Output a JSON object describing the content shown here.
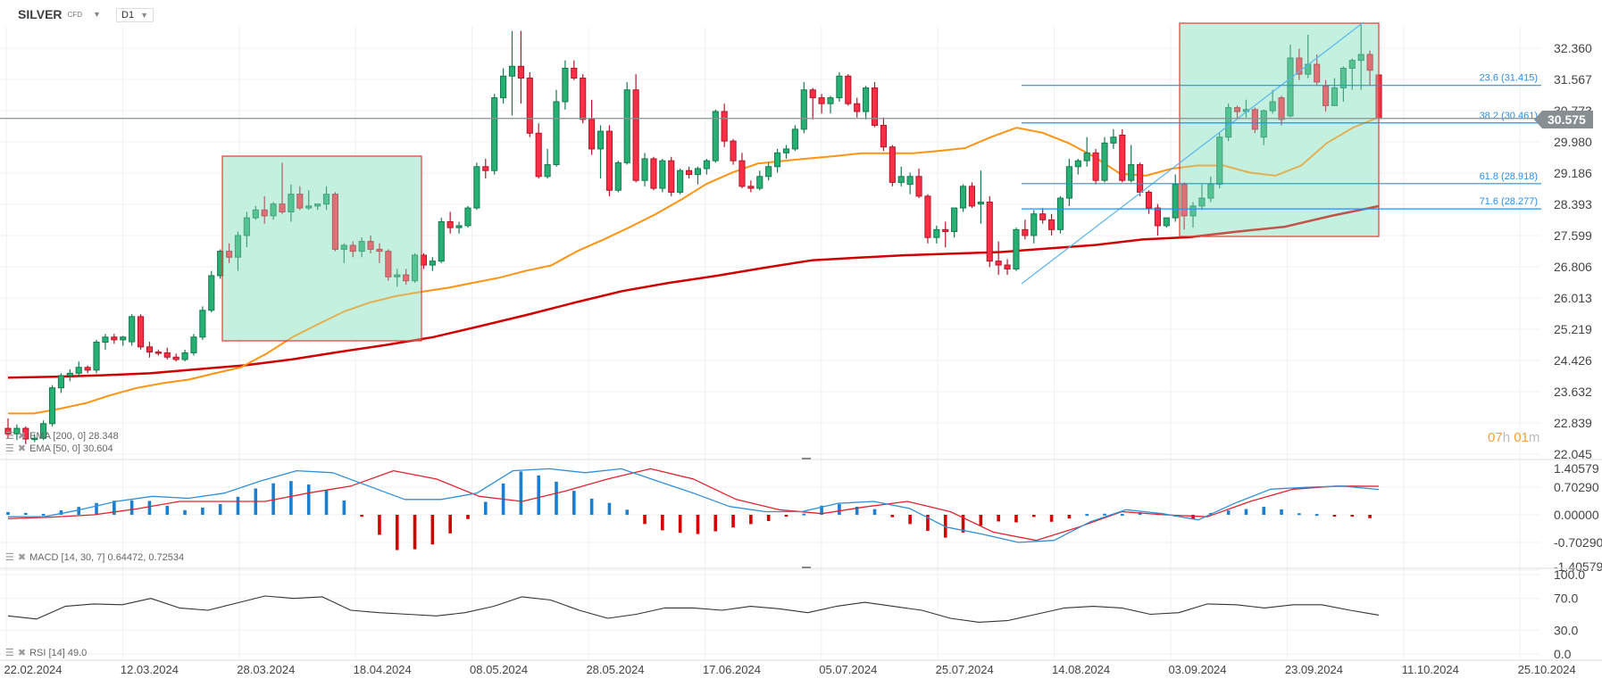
{
  "header": {
    "symbol": "SILVER",
    "instrument_type": "CFD",
    "timeframe": "D1"
  },
  "current_price": "30.575",
  "countdown": {
    "hours": "07",
    "h_unit": "h",
    "minutes": "01",
    "m_unit": "m"
  },
  "legends": {
    "ema200": "EMA [200, 0] 28.348",
    "ema50": "EMA [50, 0] 30.604",
    "macd": "MACD [14, 30, 7] 0.64472, 0.72534",
    "rsi": "RSI [14] 49.0"
  },
  "colors": {
    "up": "#27b074",
    "down": "#fb2e45",
    "ema50": "#ff9312",
    "ema200": "#d10000",
    "macd": "#2f8fd8",
    "signal": "#e0242f",
    "fib": "#1e90ff",
    "rect_fill": "#6fd8b0",
    "rect_border": "#e53935"
  },
  "fibonacci": [
    {
      "label": "23.6 (31.415)",
      "price": 31.415
    },
    {
      "label": "38.2 (30.461)",
      "price": 30.461
    },
    {
      "label": "61.8 (28.918)",
      "price": 28.918
    },
    {
      "label": "71.6 (28.277)",
      "price": 28.277
    }
  ],
  "chart_data": {
    "type": "candlestick",
    "title": "SILVER",
    "timeframe": "D1",
    "price_axis": [
      "32.360",
      "31.567",
      "30.773",
      "29.980",
      "29.186",
      "28.393",
      "27.599",
      "26.806",
      "26.013",
      "25.219",
      "24.426",
      "23.632",
      "22.839",
      "22.045"
    ],
    "price_range": [
      22.045,
      32.36
    ],
    "date_axis": [
      "22.02.2024",
      "12.03.2024",
      "28.03.2024",
      "18.04.2024",
      "08.05.2024",
      "28.05.2024",
      "17.06.2024",
      "05.07.2024",
      "25.07.2024",
      "14.08.2024",
      "03.09.2024",
      "23.09.2024",
      "11.10.2024",
      "25.10.2024"
    ],
    "candles_ohlc": [
      [
        22.7,
        22.95,
        22.45,
        22.56
      ],
      [
        22.56,
        22.8,
        22.4,
        22.7
      ],
      [
        22.7,
        22.75,
        22.3,
        22.43
      ],
      [
        22.43,
        22.55,
        22.35,
        22.45
      ],
      [
        22.45,
        22.9,
        22.4,
        22.82
      ],
      [
        22.82,
        23.8,
        22.75,
        23.73
      ],
      [
        23.73,
        24.1,
        23.6,
        24.04
      ],
      [
        24.04,
        24.2,
        23.9,
        24.1
      ],
      [
        24.1,
        24.4,
        24.0,
        24.25
      ],
      [
        24.25,
        24.3,
        24.1,
        24.18
      ],
      [
        24.18,
        24.95,
        24.1,
        24.89
      ],
      [
        24.89,
        25.1,
        24.7,
        25.02
      ],
      [
        25.02,
        25.1,
        24.85,
        24.95
      ],
      [
        24.95,
        25.05,
        24.8,
        25.02
      ],
      [
        24.9,
        25.6,
        24.8,
        25.54
      ],
      [
        25.54,
        25.6,
        24.7,
        24.77
      ],
      [
        24.77,
        24.9,
        24.5,
        24.64
      ],
      [
        24.64,
        24.7,
        24.55,
        24.62
      ],
      [
        24.62,
        24.75,
        24.45,
        24.51
      ],
      [
        24.51,
        24.6,
        24.4,
        24.45
      ],
      [
        24.45,
        24.7,
        24.4,
        24.62
      ],
      [
        24.62,
        25.1,
        24.55,
        25.02
      ],
      [
        25.02,
        25.8,
        24.95,
        25.7
      ],
      [
        25.7,
        26.7,
        25.65,
        26.58
      ],
      [
        26.58,
        27.25,
        26.5,
        27.2
      ],
      [
        27.2,
        27.4,
        26.9,
        27.05
      ],
      [
        27.05,
        27.7,
        26.7,
        27.6
      ],
      [
        27.6,
        28.2,
        27.3,
        28.05
      ],
      [
        28.05,
        28.35,
        28.0,
        28.25
      ],
      [
        28.25,
        28.6,
        27.9,
        28.1
      ],
      [
        28.1,
        28.45,
        28.0,
        28.4
      ],
      [
        28.4,
        29.45,
        28.15,
        28.2
      ],
      [
        28.2,
        28.9,
        27.95,
        28.65
      ],
      [
        28.65,
        28.85,
        28.25,
        28.3
      ],
      [
        28.3,
        28.75,
        28.25,
        28.35
      ],
      [
        28.35,
        28.4,
        28.25,
        28.4
      ],
      [
        28.4,
        28.85,
        28.25,
        28.65
      ],
      [
        28.65,
        28.7,
        27.2,
        27.25
      ],
      [
        27.25,
        27.4,
        26.9,
        27.35
      ],
      [
        27.35,
        27.45,
        27.05,
        27.2
      ],
      [
        27.2,
        27.55,
        27.05,
        27.45
      ],
      [
        27.45,
        27.6,
        27.15,
        27.25
      ],
      [
        27.25,
        27.4,
        26.9,
        27.2
      ],
      [
        27.2,
        27.25,
        26.45,
        26.55
      ],
      [
        26.55,
        26.75,
        26.3,
        26.6
      ],
      [
        26.6,
        26.75,
        26.35,
        26.45
      ],
      [
        26.45,
        27.15,
        26.4,
        27.1
      ],
      [
        27.1,
        27.15,
        26.75,
        26.85
      ],
      [
        26.85,
        27.05,
        26.7,
        26.95
      ],
      [
        26.95,
        28.05,
        26.9,
        27.95
      ],
      [
        27.95,
        28.2,
        27.65,
        27.8
      ],
      [
        27.8,
        27.95,
        27.65,
        27.85
      ],
      [
        27.85,
        28.35,
        27.8,
        28.3
      ],
      [
        28.3,
        29.45,
        28.25,
        29.35
      ],
      [
        29.35,
        29.55,
        29.05,
        29.25
      ],
      [
        29.25,
        31.2,
        29.15,
        31.1
      ],
      [
        31.1,
        31.85,
        30.95,
        31.65
      ],
      [
        31.65,
        32.8,
        30.65,
        31.9
      ],
      [
        31.9,
        32.8,
        30.95,
        31.6
      ],
      [
        31.6,
        31.75,
        30.1,
        30.2
      ],
      [
        30.2,
        30.45,
        29.05,
        29.1
      ],
      [
        29.1,
        29.8,
        29.05,
        29.4
      ],
      [
        29.4,
        31.3,
        29.35,
        31.0
      ],
      [
        31.0,
        32.05,
        30.8,
        31.85
      ],
      [
        31.85,
        32.05,
        31.55,
        31.6
      ],
      [
        31.6,
        31.7,
        30.45,
        30.55
      ],
      [
        30.55,
        31.05,
        29.65,
        29.8
      ],
      [
        29.8,
        30.4,
        29.05,
        30.25
      ],
      [
        30.25,
        30.4,
        28.6,
        28.75
      ],
      [
        28.75,
        29.5,
        28.7,
        29.45
      ],
      [
        29.45,
        31.5,
        29.4,
        31.3
      ],
      [
        31.3,
        31.7,
        28.95,
        29.0
      ],
      [
        29.0,
        29.7,
        28.85,
        29.55
      ],
      [
        29.55,
        29.6,
        28.75,
        28.8
      ],
      [
        28.8,
        29.55,
        28.7,
        29.5
      ],
      [
        29.5,
        29.6,
        28.6,
        28.7
      ],
      [
        28.7,
        29.3,
        28.65,
        29.25
      ],
      [
        29.25,
        29.35,
        29.05,
        29.15
      ],
      [
        29.15,
        29.35,
        28.9,
        29.3
      ],
      [
        29.3,
        29.55,
        29.15,
        29.5
      ],
      [
        29.5,
        30.8,
        29.45,
        30.75
      ],
      [
        30.75,
        30.95,
        29.85,
        30.0
      ],
      [
        30.0,
        30.05,
        29.4,
        29.5
      ],
      [
        29.5,
        29.7,
        28.8,
        28.85
      ],
      [
        28.85,
        29.0,
        28.7,
        28.8
      ],
      [
        28.8,
        29.25,
        28.75,
        29.1
      ],
      [
        29.1,
        29.45,
        29.0,
        29.35
      ],
      [
        29.35,
        29.8,
        29.2,
        29.7
      ],
      [
        29.7,
        29.9,
        29.55,
        29.8
      ],
      [
        29.8,
        30.4,
        29.75,
        30.3
      ],
      [
        30.3,
        31.5,
        30.2,
        31.3
      ],
      [
        31.3,
        31.35,
        30.55,
        31.1
      ],
      [
        31.1,
        31.2,
        30.7,
        30.95
      ],
      [
        30.95,
        31.15,
        30.7,
        31.1
      ],
      [
        31.1,
        31.75,
        31.0,
        31.65
      ],
      [
        31.65,
        31.7,
        30.9,
        30.95
      ],
      [
        30.95,
        31.1,
        30.6,
        30.75
      ],
      [
        30.75,
        31.4,
        30.55,
        31.35
      ],
      [
        31.35,
        31.5,
        30.35,
        30.4
      ],
      [
        30.4,
        30.6,
        29.75,
        29.85
      ],
      [
        29.85,
        29.9,
        28.85,
        28.95
      ],
      [
        28.95,
        29.35,
        28.85,
        29.1
      ],
      [
        28.9,
        29.2,
        28.65,
        29.1
      ],
      [
        29.1,
        29.3,
        28.55,
        28.6
      ],
      [
        28.6,
        28.65,
        27.4,
        27.55
      ],
      [
        27.55,
        27.85,
        27.4,
        27.75
      ],
      [
        27.75,
        27.95,
        27.3,
        27.7
      ],
      [
        27.7,
        28.3,
        27.55,
        28.3
      ],
      [
        28.3,
        28.9,
        28.2,
        28.85
      ],
      [
        28.85,
        28.95,
        28.3,
        28.35
      ],
      [
        28.4,
        29.25,
        27.9,
        28.45
      ],
      [
        28.45,
        28.6,
        26.8,
        26.95
      ],
      [
        26.95,
        27.45,
        26.6,
        26.85
      ],
      [
        26.85,
        27.0,
        26.6,
        26.75
      ],
      [
        26.75,
        27.8,
        26.7,
        27.75
      ],
      [
        27.75,
        28.0,
        27.5,
        27.6
      ],
      [
        27.6,
        28.25,
        27.4,
        28.15
      ],
      [
        28.15,
        28.3,
        27.9,
        28.0
      ],
      [
        28.0,
        28.15,
        27.6,
        27.75
      ],
      [
        27.75,
        28.6,
        27.65,
        28.55
      ],
      [
        28.55,
        29.55,
        28.35,
        29.35
      ],
      [
        29.35,
        29.55,
        29.15,
        29.5
      ],
      [
        29.5,
        30.1,
        29.35,
        29.7
      ],
      [
        29.7,
        29.8,
        28.9,
        29.0
      ],
      [
        29.0,
        30.1,
        28.95,
        29.95
      ],
      [
        29.95,
        30.3,
        29.8,
        30.1
      ],
      [
        30.15,
        30.3,
        28.95,
        29.0
      ],
      [
        29.0,
        29.9,
        28.95,
        29.4
      ],
      [
        29.4,
        29.45,
        28.6,
        28.7
      ],
      [
        28.7,
        28.75,
        28.15,
        28.3
      ],
      [
        28.3,
        28.4,
        27.6,
        27.85
      ],
      [
        27.85,
        28.05,
        27.8,
        28.05
      ],
      [
        28.05,
        29.15,
        27.95,
        28.9
      ],
      [
        28.9,
        28.95,
        27.75,
        28.1
      ],
      [
        28.1,
        28.45,
        27.8,
        28.35
      ],
      [
        28.35,
        28.9,
        28.25,
        28.55
      ],
      [
        28.55,
        29.1,
        28.45,
        28.9
      ],
      [
        28.9,
        30.2,
        28.8,
        30.1
      ],
      [
        30.1,
        30.95,
        30.0,
        30.85
      ],
      [
        30.85,
        30.9,
        30.55,
        30.75
      ],
      [
        30.75,
        31.05,
        30.6,
        30.8
      ],
      [
        30.8,
        30.85,
        30.2,
        30.3
      ],
      [
        30.1,
        30.8,
        29.9,
        30.77
      ],
      [
        30.77,
        31.3,
        30.7,
        31.0
      ],
      [
        31.1,
        31.15,
        30.4,
        30.55
      ],
      [
        30.64,
        32.45,
        30.6,
        32.11
      ],
      [
        32.11,
        32.35,
        31.55,
        31.7
      ],
      [
        31.7,
        32.7,
        31.6,
        31.95
      ],
      [
        31.95,
        32.2,
        31.4,
        31.5
      ],
      [
        31.4,
        31.55,
        30.75,
        30.9
      ],
      [
        30.9,
        31.6,
        30.9,
        31.35
      ],
      [
        31.35,
        31.9,
        31.0,
        31.85
      ],
      [
        31.85,
        32.1,
        31.3,
        32.05
      ],
      [
        32.05,
        32.95,
        31.3,
        32.2
      ],
      [
        32.2,
        32.3,
        31.4,
        31.8
      ],
      [
        31.68,
        31.7,
        30.55,
        30.575
      ]
    ],
    "ema50_sampled": [
      23.08,
      23.08,
      23.2,
      23.34,
      23.55,
      23.73,
      23.85,
      23.94,
      24.1,
      24.25,
      24.6,
      25.02,
      25.35,
      25.67,
      25.9,
      26.06,
      26.17,
      26.27,
      26.4,
      26.53,
      26.7,
      26.84,
      27.2,
      27.49,
      27.8,
      28.13,
      28.5,
      28.91,
      29.2,
      29.43,
      29.5,
      29.56,
      29.62,
      29.69,
      29.69,
      29.69,
      29.75,
      29.82,
      30.1,
      30.34,
      30.21,
      29.95,
      29.6,
      29.17,
      29.12,
      29.3,
      29.38,
      29.38,
      29.2,
      29.12,
      29.38,
      29.95,
      30.34,
      30.604
    ],
    "ema200_sampled": [
      23.99,
      24.01,
      24.05,
      24.1,
      24.2,
      24.3,
      24.45,
      24.64,
      24.82,
      25.02,
      25.3,
      25.59,
      25.9,
      26.19,
      26.4,
      26.58,
      26.78,
      26.97,
      27.04,
      27.1,
      27.14,
      27.18,
      27.27,
      27.36,
      27.5,
      27.56,
      27.7,
      27.82,
      28.1,
      28.348
    ],
    "macd_sampled": [
      -0.05,
      -0.05,
      0.13,
      0.34,
      0.47,
      0.42,
      0.55,
      0.86,
      1.12,
      1.07,
      0.73,
      0.39,
      0.39,
      0.55,
      1.12,
      1.17,
      1.07,
      1.17,
      0.86,
      0.55,
      0.21,
      0.08,
      0.08,
      0.29,
      0.34,
      0.16,
      -0.31,
      -0.49,
      -0.7,
      -0.65,
      -0.18,
      0.13,
      0.03,
      -0.13,
      0.29,
      0.65,
      0.7,
      0.73,
      0.64472
    ],
    "signal_sampled": [
      -0.1,
      -0.06,
      0.0,
      0.15,
      0.34,
      0.34,
      0.34,
      0.55,
      0.73,
      1.12,
      0.91,
      0.47,
      0.34,
      0.6,
      0.91,
      1.17,
      0.91,
      0.39,
      0.13,
      0.03,
      0.2,
      0.34,
      0.08,
      -0.44,
      -0.65,
      -0.31,
      0.08,
      0.0,
      -0.05,
      0.34,
      0.65,
      0.73,
      0.72534
    ],
    "macd_axis": [
      "1.40579",
      "0.70290",
      "0.00000",
      "-0.70290",
      "-1.40579"
    ],
    "rsi_sampled": [
      48,
      44,
      60,
      63,
      62,
      70,
      58,
      55,
      64,
      73,
      70,
      72,
      55,
      52,
      50,
      48,
      52,
      60,
      72,
      68,
      55,
      45,
      50,
      58,
      58,
      55,
      60,
      57,
      52,
      60,
      65,
      60,
      55,
      45,
      40,
      42,
      50,
      58,
      60,
      58,
      50,
      52,
      63,
      62,
      58,
      62,
      62,
      55,
      49
    ],
    "rsi_axis": [
      "100.0",
      "70.0",
      "30.0",
      "0.0"
    ]
  }
}
